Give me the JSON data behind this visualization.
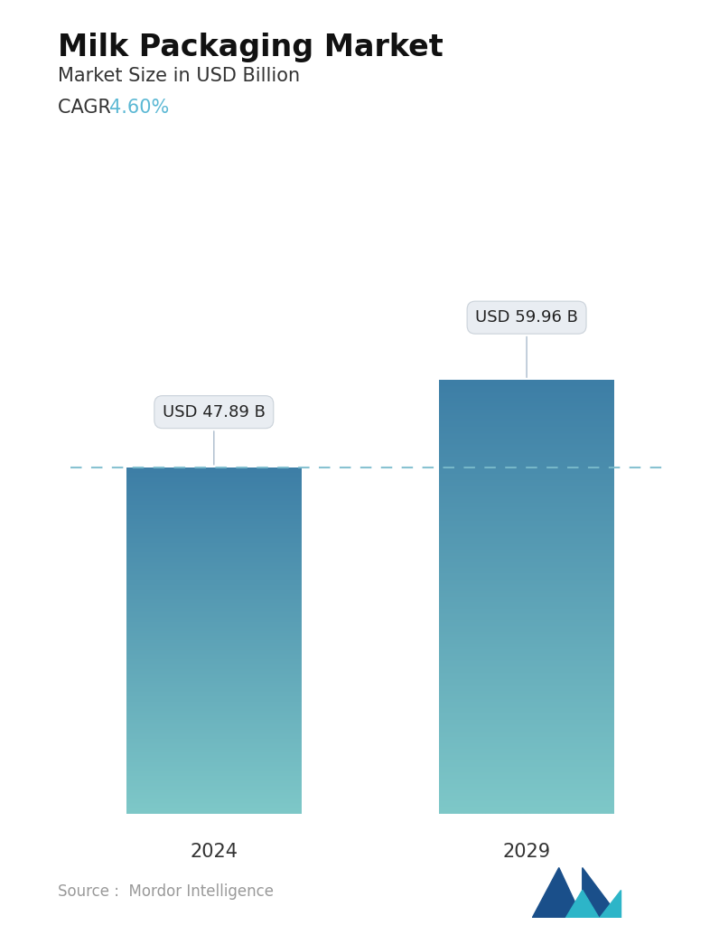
{
  "title": "Milk Packaging Market",
  "subtitle": "Market Size in USD Billion",
  "cagr_label": "CAGR",
  "cagr_value": "4.60%",
  "cagr_color": "#5BB8D4",
  "categories": [
    "2024",
    "2029"
  ],
  "values": [
    47.89,
    59.96
  ],
  "bar_labels": [
    "USD 47.89 B",
    "USD 59.96 B"
  ],
  "bar_color_top": "#3d7ea6",
  "bar_color_bottom": "#7ec8c8",
  "dashed_line_color": "#7BBCCC",
  "source_text": "Source :  Mordor Intelligence",
  "source_color": "#999999",
  "background_color": "#ffffff",
  "title_fontsize": 24,
  "subtitle_fontsize": 15,
  "cagr_fontsize": 15,
  "bar_label_fontsize": 13,
  "xtick_fontsize": 15,
  "source_fontsize": 12,
  "ylim_max": 75,
  "bar_width": 0.28
}
